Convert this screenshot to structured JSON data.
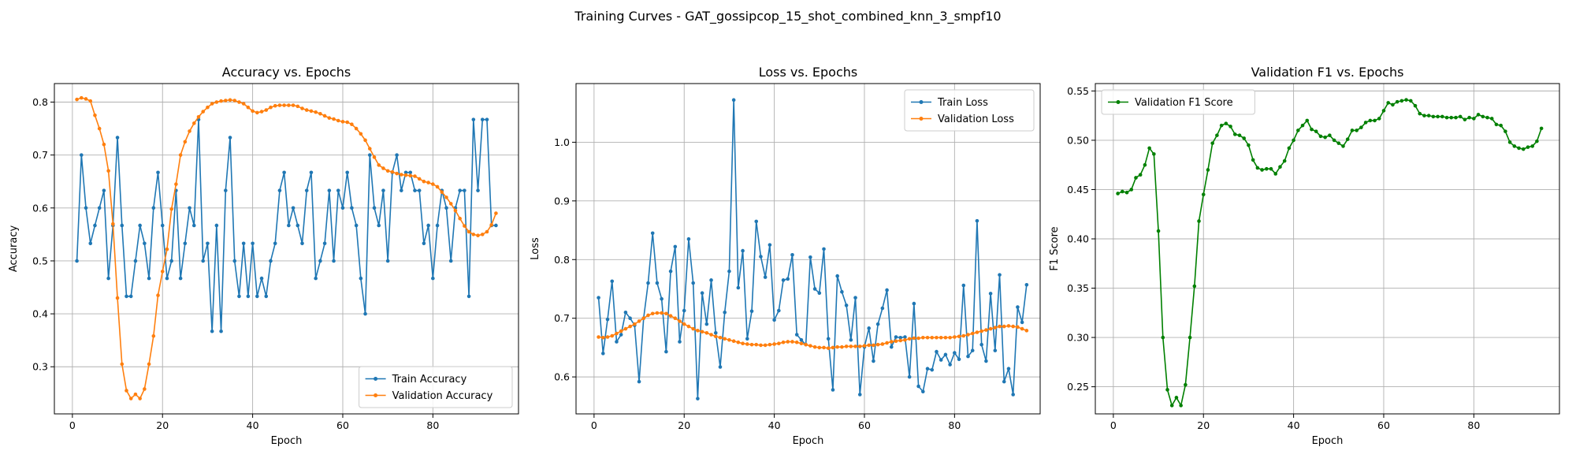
{
  "figure": {
    "suptitle": "Training Curves - GAT_gossipcop_15_shot_combined_knn_3_smpf10",
    "colors": {
      "train": "#1f77b4",
      "validation": "#ff7f0e",
      "f1": "#008000"
    }
  },
  "chart_data": [
    {
      "type": "line",
      "title": "Accuracy vs. Epochs",
      "xlabel": "Epoch",
      "ylabel": "Accuracy",
      "xlim": [
        -4,
        99
      ],
      "ylim": [
        0.211,
        0.835
      ],
      "xticks": [
        0,
        20,
        40,
        60,
        80
      ],
      "yticks": [
        0.3,
        0.4,
        0.5,
        0.6,
        0.7,
        0.8
      ],
      "tick_decimals": 1,
      "grid": true,
      "legend_position": "lower-right",
      "x_start": 1,
      "series": [
        {
          "name": "Train Accuracy",
          "color": "#1f77b4",
          "values": [
            0.5,
            0.7,
            0.6,
            0.533,
            0.567,
            0.6,
            0.633,
            0.467,
            0.567,
            0.733,
            0.567,
            0.433,
            0.433,
            0.5,
            0.567,
            0.533,
            0.467,
            0.6,
            0.667,
            0.567,
            0.467,
            0.5,
            0.633,
            0.467,
            0.533,
            0.6,
            0.567,
            0.767,
            0.5,
            0.533,
            0.367,
            0.567,
            0.367,
            0.633,
            0.733,
            0.5,
            0.433,
            0.533,
            0.433,
            0.533,
            0.433,
            0.467,
            0.433,
            0.5,
            0.533,
            0.633,
            0.667,
            0.567,
            0.6,
            0.567,
            0.533,
            0.633,
            0.667,
            0.467,
            0.5,
            0.533,
            0.633,
            0.5,
            0.633,
            0.6,
            0.667,
            0.6,
            0.567,
            0.467,
            0.4,
            0.7,
            0.6,
            0.567,
            0.633,
            0.5,
            0.667,
            0.7,
            0.633,
            0.667,
            0.667,
            0.633,
            0.633,
            0.533,
            0.567,
            0.467,
            0.567,
            0.633,
            0.6,
            0.5,
            0.6,
            0.633,
            0.633,
            0.433,
            0.767,
            0.633,
            0.767,
            0.767,
            0.567,
            0.567
          ]
        },
        {
          "name": "Validation Accuracy",
          "color": "#ff7f0e",
          "values": [
            0.805,
            0.808,
            0.806,
            0.802,
            0.775,
            0.75,
            0.72,
            0.67,
            0.57,
            0.43,
            0.305,
            0.255,
            0.24,
            0.248,
            0.24,
            0.258,
            0.305,
            0.358,
            0.435,
            0.48,
            0.522,
            0.598,
            0.645,
            0.7,
            0.725,
            0.745,
            0.76,
            0.772,
            0.782,
            0.79,
            0.797,
            0.8,
            0.802,
            0.803,
            0.804,
            0.803,
            0.8,
            0.797,
            0.79,
            0.783,
            0.78,
            0.782,
            0.785,
            0.79,
            0.793,
            0.794,
            0.794,
            0.794,
            0.794,
            0.792,
            0.788,
            0.785,
            0.783,
            0.781,
            0.778,
            0.774,
            0.77,
            0.768,
            0.765,
            0.763,
            0.762,
            0.758,
            0.75,
            0.74,
            0.728,
            0.712,
            0.696,
            0.681,
            0.675,
            0.67,
            0.668,
            0.665,
            0.663,
            0.662,
            0.661,
            0.66,
            0.655,
            0.65,
            0.648,
            0.645,
            0.64,
            0.63,
            0.62,
            0.608,
            0.595,
            0.58,
            0.566,
            0.555,
            0.55,
            0.548,
            0.55,
            0.555,
            0.568,
            0.59
          ]
        }
      ]
    },
    {
      "type": "line",
      "title": "Loss vs. Epochs",
      "xlabel": "Epoch",
      "ylabel": "Loss",
      "xlim": [
        -4,
        99
      ],
      "ylim": [
        0.537,
        1.1
      ],
      "xticks": [
        0,
        20,
        40,
        60,
        80
      ],
      "yticks": [
        0.6,
        0.7,
        0.8,
        0.9,
        1.0
      ],
      "tick_decimals": 1,
      "grid": true,
      "legend_position": "upper-right",
      "x_start": 1,
      "series": [
        {
          "name": "Train Loss",
          "color": "#1f77b4",
          "values": [
            0.735,
            0.64,
            0.698,
            0.763,
            0.66,
            0.672,
            0.71,
            0.7,
            0.688,
            0.592,
            0.7,
            0.76,
            0.845,
            0.76,
            0.733,
            0.643,
            0.78,
            0.822,
            0.66,
            0.713,
            0.835,
            0.76,
            0.563,
            0.743,
            0.69,
            0.765,
            0.675,
            0.617,
            0.71,
            0.78,
            1.072,
            0.752,
            0.815,
            0.665,
            0.712,
            0.865,
            0.805,
            0.77,
            0.825,
            0.697,
            0.713,
            0.765,
            0.767,
            0.808,
            0.672,
            0.663,
            0.655,
            0.804,
            0.75,
            0.743,
            0.818,
            0.665,
            0.578,
            0.772,
            0.745,
            0.722,
            0.663,
            0.735,
            0.57,
            0.651,
            0.683,
            0.627,
            0.69,
            0.717,
            0.748,
            0.651,
            0.668,
            0.667,
            0.668,
            0.6,
            0.725,
            0.584,
            0.575,
            0.614,
            0.612,
            0.643,
            0.629,
            0.638,
            0.621,
            0.641,
            0.63,
            0.756,
            0.635,
            0.645,
            0.866,
            0.655,
            0.627,
            0.742,
            0.645,
            0.774,
            0.592,
            0.614,
            0.57,
            0.719,
            0.693,
            0.757
          ]
        },
        {
          "name": "Validation Loss",
          "color": "#ff7f0e",
          "values": [
            0.668,
            0.667,
            0.668,
            0.67,
            0.674,
            0.678,
            0.682,
            0.686,
            0.69,
            0.695,
            0.7,
            0.705,
            0.708,
            0.709,
            0.709,
            0.708,
            0.704,
            0.7,
            0.695,
            0.69,
            0.686,
            0.682,
            0.679,
            0.677,
            0.675,
            0.672,
            0.669,
            0.667,
            0.665,
            0.663,
            0.661,
            0.659,
            0.657,
            0.656,
            0.655,
            0.655,
            0.654,
            0.654,
            0.655,
            0.656,
            0.657,
            0.659,
            0.66,
            0.66,
            0.659,
            0.657,
            0.655,
            0.653,
            0.651,
            0.65,
            0.65,
            0.649,
            0.65,
            0.651,
            0.651,
            0.652,
            0.652,
            0.652,
            0.652,
            0.653,
            0.654,
            0.654,
            0.655,
            0.656,
            0.658,
            0.66,
            0.661,
            0.662,
            0.663,
            0.665,
            0.666,
            0.666,
            0.667,
            0.667,
            0.667,
            0.667,
            0.667,
            0.667,
            0.667,
            0.668,
            0.669,
            0.67,
            0.672,
            0.674,
            0.676,
            0.678,
            0.68,
            0.682,
            0.684,
            0.686,
            0.686,
            0.687,
            0.686,
            0.685,
            0.682,
            0.679
          ]
        }
      ]
    },
    {
      "type": "line",
      "title": "Validation F1 vs. Epochs",
      "xlabel": "Epoch",
      "ylabel": "F1 Score",
      "xlim": [
        -4,
        99
      ],
      "ylim": [
        0.2225,
        0.5575
      ],
      "xticks": [
        0,
        20,
        40,
        60,
        80
      ],
      "yticks": [
        0.25,
        0.3,
        0.35,
        0.4,
        0.45,
        0.5,
        0.55
      ],
      "tick_decimals": 2,
      "grid": true,
      "legend_position": "upper-left",
      "x_start": 1,
      "series": [
        {
          "name": "Validation F1 Score",
          "color": "#008000",
          "values": [
            0.446,
            0.448,
            0.447,
            0.45,
            0.462,
            0.465,
            0.475,
            0.492,
            0.486,
            0.408,
            0.3,
            0.247,
            0.231,
            0.239,
            0.231,
            0.252,
            0.3,
            0.352,
            0.418,
            0.445,
            0.47,
            0.497,
            0.505,
            0.515,
            0.517,
            0.514,
            0.506,
            0.505,
            0.502,
            0.495,
            0.48,
            0.472,
            0.47,
            0.471,
            0.471,
            0.466,
            0.473,
            0.479,
            0.492,
            0.5,
            0.51,
            0.515,
            0.52,
            0.511,
            0.509,
            0.504,
            0.503,
            0.505,
            0.5,
            0.497,
            0.494,
            0.501,
            0.51,
            0.51,
            0.513,
            0.518,
            0.52,
            0.52,
            0.522,
            0.53,
            0.538,
            0.536,
            0.539,
            0.54,
            0.541,
            0.54,
            0.535,
            0.527,
            0.525,
            0.525,
            0.524,
            0.524,
            0.524,
            0.523,
            0.523,
            0.523,
            0.524,
            0.521,
            0.523,
            0.522,
            0.526,
            0.524,
            0.523,
            0.522,
            0.516,
            0.515,
            0.509,
            0.498,
            0.494,
            0.492,
            0.491,
            0.493,
            0.494,
            0.499,
            0.512
          ]
        }
      ]
    }
  ]
}
